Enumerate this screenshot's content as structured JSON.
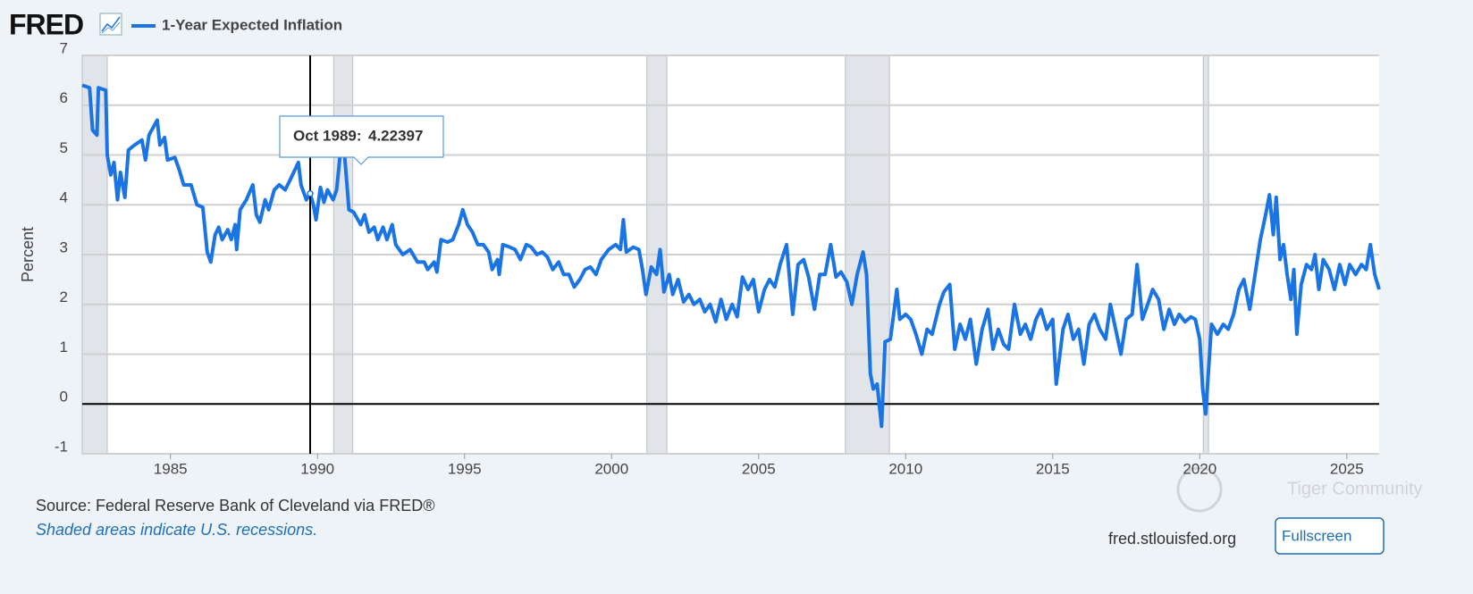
{
  "header": {
    "logo": "FRED"
  },
  "chart_data": {
    "type": "line",
    "y_label": "Percent",
    "series": [
      {
        "name": "1-Year Expected Inflation",
        "color": "#1b74e4",
        "x": [
          1982.0,
          1982.25,
          1982.35,
          1982.5,
          1982.55,
          1982.8,
          1982.85,
          1982.97,
          1983.08,
          1983.2,
          1983.3,
          1983.45,
          1983.57,
          1983.78,
          1984.03,
          1984.15,
          1984.27,
          1984.55,
          1984.64,
          1984.8,
          1984.9,
          1985.15,
          1985.3,
          1985.45,
          1985.7,
          1985.9,
          1986.1,
          1986.25,
          1986.37,
          1986.52,
          1986.64,
          1986.76,
          1986.95,
          1987.07,
          1987.2,
          1987.25,
          1987.37,
          1987.58,
          1987.8,
          1987.92,
          1988.04,
          1988.22,
          1988.34,
          1988.53,
          1988.7,
          1988.9,
          1989.07,
          1989.35,
          1989.44,
          1989.62,
          1989.75,
          1989.86,
          1989.95,
          1990.1,
          1990.22,
          1990.34,
          1990.53,
          1990.65,
          1990.77,
          1990.92,
          1991.07,
          1991.23,
          1991.47,
          1991.6,
          1991.75,
          1991.93,
          1992.05,
          1992.23,
          1992.36,
          1992.54,
          1992.66,
          1992.9,
          1993.15,
          1993.4,
          1993.63,
          1993.75,
          1993.97,
          1994.06,
          1994.2,
          1994.42,
          1994.6,
          1994.8,
          1994.94,
          1995.1,
          1995.27,
          1995.45,
          1995.64,
          1995.82,
          1995.94,
          1996.12,
          1996.18,
          1996.3,
          1996.54,
          1996.72,
          1996.9,
          1997.1,
          1997.27,
          1997.46,
          1997.64,
          1997.82,
          1998.0,
          1998.2,
          1998.37,
          1998.55,
          1998.73,
          1998.92,
          1999.1,
          1999.28,
          1999.47,
          1999.65,
          1999.9,
          2000.14,
          2000.3,
          2000.4,
          2000.5,
          2000.74,
          2000.93,
          2001.05,
          2001.17,
          2001.35,
          2001.53,
          2001.65,
          2001.78,
          2001.96,
          2002.08,
          2002.26,
          2002.45,
          2002.63,
          2002.8,
          2003.0,
          2003.17,
          2003.35,
          2003.54,
          2003.72,
          2003.9,
          2004.1,
          2004.27,
          2004.45,
          2004.64,
          2004.82,
          2005.0,
          2005.2,
          2005.37,
          2005.55,
          2005.73,
          2005.95,
          2006.16,
          2006.34,
          2006.53,
          2006.7,
          2006.9,
          2007.08,
          2007.26,
          2007.45,
          2007.63,
          2007.8,
          2008.0,
          2008.17,
          2008.35,
          2008.55,
          2008.67,
          2008.8,
          2008.9,
          2009.03,
          2009.18,
          2009.3,
          2009.48,
          2009.7,
          2009.8,
          2010.0,
          2010.17,
          2010.35,
          2010.55,
          2010.73,
          2010.9,
          2011.15,
          2011.3,
          2011.5,
          2011.67,
          2011.85,
          2012.03,
          2012.2,
          2012.4,
          2012.6,
          2012.8,
          2012.97,
          2013.15,
          2013.33,
          2013.5,
          2013.7,
          2013.9,
          2014.07,
          2014.25,
          2014.43,
          2014.6,
          2014.8,
          2015.0,
          2015.12,
          2015.35,
          2015.52,
          2015.7,
          2015.88,
          2016.06,
          2016.24,
          2016.42,
          2016.6,
          2016.8,
          2016.96,
          2017.14,
          2017.32,
          2017.5,
          2017.7,
          2017.87,
          2018.05,
          2018.23,
          2018.4,
          2018.6,
          2018.78,
          2018.96,
          2019.14,
          2019.3,
          2019.5,
          2019.7,
          2019.85,
          2020.0,
          2020.1,
          2020.2,
          2020.4,
          2020.6,
          2020.8,
          2020.97,
          2021.15,
          2021.33,
          2021.5,
          2021.7,
          2021.88,
          2022.06,
          2022.24,
          2022.37,
          2022.5,
          2022.6,
          2022.73,
          2022.85,
          2022.97,
          2023.1,
          2023.2,
          2023.3,
          2023.45,
          2023.63,
          2023.8,
          2023.92,
          2024.05,
          2024.2,
          2024.4,
          2024.58,
          2024.76,
          2024.94,
          2025.1,
          2025.3,
          2025.5,
          2025.66,
          2025.8,
          2025.95,
          2026.1
        ],
        "values": [
          6.4,
          6.35,
          5.5,
          5.4,
          6.35,
          6.3,
          5.0,
          4.6,
          4.85,
          4.1,
          4.65,
          4.15,
          5.1,
          5.2,
          5.3,
          4.9,
          5.4,
          5.7,
          5.2,
          5.35,
          4.9,
          4.95,
          4.7,
          4.4,
          4.4,
          4.0,
          3.95,
          3.05,
          2.85,
          3.4,
          3.55,
          3.3,
          3.5,
          3.3,
          3.6,
          3.1,
          3.9,
          4.1,
          4.4,
          3.8,
          3.65,
          4.1,
          3.9,
          4.3,
          4.4,
          4.3,
          4.5,
          4.85,
          4.4,
          4.1,
          4.22397,
          4.0,
          3.7,
          4.35,
          4.05,
          4.3,
          4.1,
          4.3,
          5.0,
          5.0,
          3.9,
          3.85,
          3.6,
          3.8,
          3.45,
          3.55,
          3.3,
          3.55,
          3.3,
          3.6,
          3.2,
          3.0,
          3.1,
          2.85,
          2.85,
          2.7,
          2.85,
          2.65,
          3.3,
          3.25,
          3.3,
          3.6,
          3.9,
          3.6,
          3.45,
          3.2,
          3.2,
          3.05,
          2.7,
          2.9,
          2.6,
          3.2,
          3.15,
          3.1,
          2.9,
          3.2,
          3.15,
          3.0,
          3.05,
          2.95,
          2.7,
          2.85,
          2.6,
          2.6,
          2.35,
          2.5,
          2.7,
          2.75,
          2.6,
          2.9,
          3.1,
          3.2,
          3.1,
          3.7,
          3.05,
          3.15,
          3.1,
          2.7,
          2.2,
          2.75,
          2.6,
          3.1,
          2.25,
          2.6,
          2.2,
          2.5,
          2.05,
          2.2,
          2.0,
          2.1,
          1.85,
          2.0,
          1.65,
          2.1,
          1.7,
          2.0,
          1.75,
          2.55,
          2.3,
          2.5,
          1.85,
          2.3,
          2.5,
          2.35,
          2.8,
          3.2,
          1.8,
          2.8,
          2.9,
          2.55,
          1.9,
          2.6,
          2.6,
          3.2,
          2.55,
          2.65,
          2.45,
          2.0,
          2.6,
          3.05,
          2.6,
          0.6,
          0.3,
          0.4,
          -0.45,
          1.25,
          1.3,
          2.3,
          1.7,
          1.8,
          1.7,
          1.4,
          1.0,
          1.5,
          1.4,
          2.0,
          2.25,
          2.4,
          1.1,
          1.6,
          1.3,
          1.7,
          0.8,
          1.5,
          1.9,
          1.1,
          1.5,
          1.2,
          1.1,
          2.0,
          1.4,
          1.6,
          1.3,
          1.7,
          1.9,
          1.5,
          1.7,
          0.4,
          1.5,
          1.8,
          1.3,
          1.5,
          0.8,
          1.6,
          1.8,
          1.5,
          1.3,
          2.0,
          1.5,
          1.0,
          1.7,
          1.8,
          2.8,
          1.7,
          2.0,
          2.3,
          2.1,
          1.5,
          1.9,
          1.6,
          1.8,
          1.65,
          1.75,
          1.7,
          1.3,
          0.3,
          -0.2,
          1.6,
          1.4,
          1.6,
          1.5,
          1.8,
          2.3,
          2.5,
          1.9,
          2.6,
          3.3,
          3.8,
          4.2,
          3.4,
          4.15,
          2.9,
          3.2,
          2.6,
          2.1,
          2.7,
          1.4,
          2.4,
          2.8,
          2.7,
          3.0,
          2.3,
          2.9,
          2.7,
          2.3,
          2.8,
          2.4,
          2.8,
          2.6,
          2.8,
          2.7,
          3.2,
          2.6,
          2.3
        ]
      }
    ],
    "xlim": [
      1982.0,
      2026.1
    ],
    "ylim": [
      -1,
      7
    ],
    "xticks": [
      1985,
      1990,
      1995,
      2000,
      2005,
      2010,
      2015,
      2020,
      2025
    ],
    "yticks": [
      -1,
      0,
      1,
      2,
      3,
      4,
      5,
      6,
      7
    ],
    "grid": true,
    "recessions": [
      [
        1982.0,
        1982.85
      ],
      [
        1990.55,
        1991.2
      ],
      [
        2001.2,
        2001.88
      ],
      [
        2007.95,
        2009.45
      ],
      [
        2020.12,
        2020.3
      ]
    ],
    "tooltip": {
      "x": 1989.75,
      "label": "Oct 1989:",
      "value": 4.22397
    },
    "source": "Source: Federal Reserve Bank of Cleveland via FRED®",
    "note": "Shaded areas indicate U.S. recessions."
  },
  "footer": {
    "site": "fred.stlouisfed.org",
    "button": "Fullscreen",
    "watermark": "Tiger Community"
  }
}
